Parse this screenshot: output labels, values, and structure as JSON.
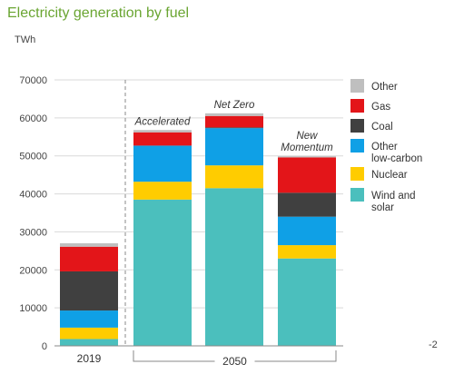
{
  "chart_data": {
    "type": "bar",
    "stacked": true,
    "title": "Electricity generation by fuel",
    "unit_label": "TWh",
    "ylim": [
      0,
      70000
    ],
    "yticks": [
      0,
      10000,
      20000,
      30000,
      40000,
      50000,
      60000,
      70000
    ],
    "ytick_labels": [
      "0",
      "10000",
      "20000",
      "30000",
      "40000",
      "50000",
      "60000",
      "70000"
    ],
    "grid": true,
    "legend_position": "right",
    "categories": [
      "2019",
      "Accelerated",
      "Net Zero",
      "New Momentum"
    ],
    "category_labels": [
      "",
      "Accelerated",
      "Net Zero",
      "New\nMomentum"
    ],
    "x_groups": [
      {
        "label": "2019",
        "categories": [
          "2019"
        ]
      },
      {
        "label": "2050",
        "categories": [
          "Accelerated",
          "Net Zero",
          "New Momentum"
        ]
      }
    ],
    "series": [
      {
        "name": "Wind and solar",
        "color": "#4bbfbd",
        "values": [
          1800,
          38500,
          41500,
          23000
        ]
      },
      {
        "name": "Nuclear",
        "color": "#ffcc00",
        "values": [
          3000,
          4700,
          6000,
          3500
        ]
      },
      {
        "name": "Other low-carbon",
        "color": "#0fa0e6",
        "values": [
          4500,
          9500,
          9800,
          7500
        ]
      },
      {
        "name": "Coal",
        "color": "#404040",
        "values": [
          10300,
          0,
          200,
          6300
        ]
      },
      {
        "name": "Gas",
        "color": "#e31519",
        "values": [
          6500,
          3500,
          3000,
          9300
        ]
      },
      {
        "name": "Other",
        "color": "#bfbfbf",
        "values": [
          900,
          600,
          700,
          300
        ]
      }
    ],
    "legend_order": [
      "Other",
      "Gas",
      "Coal",
      "Other low-carbon",
      "Nuclear",
      "Wind and solar"
    ],
    "footnote": "-2"
  }
}
